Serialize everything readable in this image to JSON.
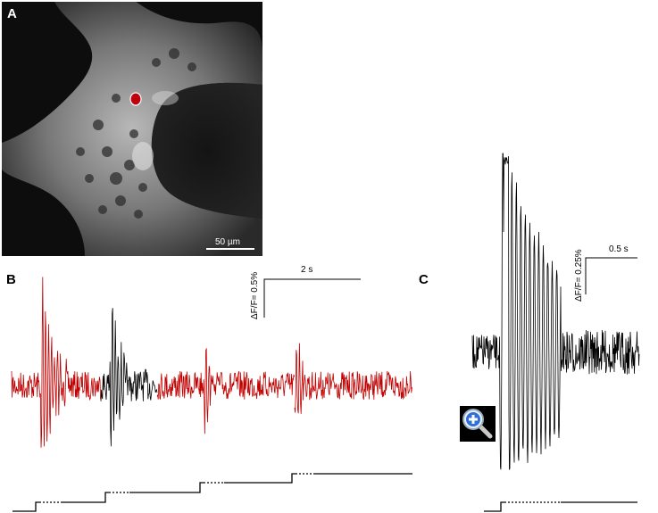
{
  "panels": {
    "a": {
      "label": "A",
      "scalebar_label": "50 µm",
      "roi_color": "#c0000b"
    },
    "b": {
      "label": "B",
      "scale_time": "2 s",
      "scale_amplitude": "ΔF/F= 0.5%"
    },
    "c": {
      "label": "C",
      "scale_time": "0.5 s",
      "scale_amplitude": "ΔF/F= 0.25%"
    }
  },
  "colors": {
    "red_trace": "#c00000",
    "black_trace": "#000000",
    "image_bg": "#0b0b0b"
  },
  "icons": {
    "zoom": "magnifier-plus-icon"
  },
  "chart_data": [
    {
      "type": "line",
      "panel": "B",
      "description": "Optical recording, red segments with one black segment; spontaneous bursts",
      "series": [
        {
          "color": "#c00000",
          "segment": 1,
          "burst_at_fraction": 0.08
        },
        {
          "color": "#000000",
          "segment": 2,
          "burst_at_fraction": 0.24
        },
        {
          "color": "#c00000",
          "segment": 3,
          "burst_at_fraction": 0.49
        },
        {
          "color": "#c00000",
          "segment": 4,
          "burst_at_fraction": 0.7
        }
      ],
      "stimulus_steps": 5
    },
    {
      "type": "line",
      "panel": "C",
      "description": "Expanded view of single burst from black segment in B",
      "series": [
        {
          "color": "#000000"
        }
      ]
    }
  ]
}
